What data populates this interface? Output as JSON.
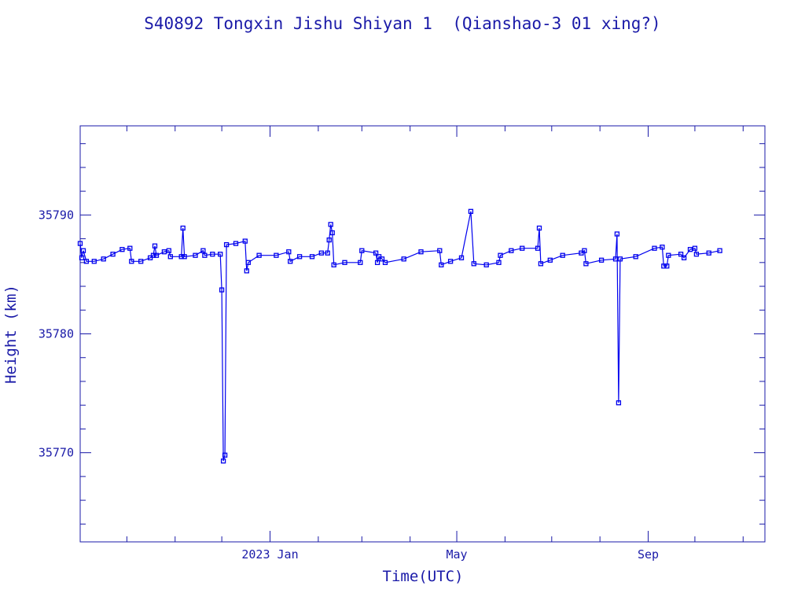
{
  "chart_data": {
    "type": "line",
    "title": "S40892 Tongxin Jishu Shiyan 1  (Qianshao-3 01 xing?)",
    "xlabel": "Time(UTC)",
    "ylabel": "Height (km)",
    "xlim": [
      "2022-09-01",
      "2023-11-15"
    ],
    "ylim": [
      35762.5,
      35797.5
    ],
    "x_ticks": [
      {
        "date": "2023-01-01",
        "label": "2023 Jan"
      },
      {
        "date": "2023-05-01",
        "label": "May"
      },
      {
        "date": "2023-09-01",
        "label": "Sep"
      }
    ],
    "y_ticks": [
      35770,
      35780,
      35790
    ],
    "grid": false,
    "color": "#0000ee",
    "series": [
      {
        "marker": "square",
        "points": [
          [
            "2022-09-01",
            35787.6
          ],
          [
            "2022-09-02",
            35786.4
          ],
          [
            "2022-09-03",
            35787.0
          ],
          [
            "2022-09-05",
            35786.1
          ],
          [
            "2022-09-10",
            35786.1
          ],
          [
            "2022-09-16",
            35786.3
          ],
          [
            "2022-09-22",
            35786.7
          ],
          [
            "2022-09-28",
            35787.1
          ],
          [
            "2022-10-03",
            35787.2
          ],
          [
            "2022-10-04",
            35786.1
          ],
          [
            "2022-10-10",
            35786.1
          ],
          [
            "2022-10-16",
            35786.4
          ],
          [
            "2022-10-18",
            35786.6
          ],
          [
            "2022-10-19",
            35787.4
          ],
          [
            "2022-10-20",
            35786.6
          ],
          [
            "2022-10-25",
            35786.9
          ],
          [
            "2022-10-28",
            35787.0
          ],
          [
            "2022-10-29",
            35786.5
          ],
          [
            "2022-11-05",
            35786.5
          ],
          [
            "2022-11-06",
            35788.9
          ],
          [
            "2022-11-07",
            35786.5
          ],
          [
            "2022-11-14",
            35786.6
          ],
          [
            "2022-11-19",
            35787.0
          ],
          [
            "2022-11-20",
            35786.6
          ],
          [
            "2022-11-25",
            35786.7
          ],
          [
            "2022-11-30",
            35786.7
          ],
          [
            "2022-12-01",
            35783.7
          ],
          [
            "2022-12-02",
            35769.3
          ],
          [
            "2022-12-03",
            35769.8
          ],
          [
            "2022-12-04",
            35787.5
          ],
          [
            "2022-12-10",
            35787.6
          ],
          [
            "2022-12-16",
            35787.8
          ],
          [
            "2022-12-17",
            35785.3
          ],
          [
            "2022-12-18",
            35786.0
          ],
          [
            "2022-12-25",
            35786.6
          ],
          [
            "2023-01-05",
            35786.6
          ],
          [
            "2023-01-13",
            35786.9
          ],
          [
            "2023-01-14",
            35786.1
          ],
          [
            "2023-01-20",
            35786.5
          ],
          [
            "2023-01-28",
            35786.5
          ],
          [
            "2023-02-03",
            35786.8
          ],
          [
            "2023-02-07",
            35786.8
          ],
          [
            "2023-02-08",
            35787.9
          ],
          [
            "2023-02-09",
            35789.2
          ],
          [
            "2023-02-10",
            35788.5
          ],
          [
            "2023-02-11",
            35785.8
          ],
          [
            "2023-02-18",
            35786.0
          ],
          [
            "2023-02-28",
            35786.0
          ],
          [
            "2023-03-01",
            35787.0
          ],
          [
            "2023-03-10",
            35786.8
          ],
          [
            "2023-03-11",
            35786.0
          ],
          [
            "2023-03-12",
            35786.5
          ],
          [
            "2023-03-14",
            35786.3
          ],
          [
            "2023-03-16",
            35786.0
          ],
          [
            "2023-03-28",
            35786.3
          ],
          [
            "2023-04-08",
            35786.9
          ],
          [
            "2023-04-20",
            35787.0
          ],
          [
            "2023-04-21",
            35785.8
          ],
          [
            "2023-04-27",
            35786.1
          ],
          [
            "2023-05-04",
            35786.4
          ],
          [
            "2023-05-10",
            35790.3
          ],
          [
            "2023-05-12",
            35785.9
          ],
          [
            "2023-05-20",
            35785.8
          ],
          [
            "2023-05-28",
            35786.0
          ],
          [
            "2023-05-29",
            35786.6
          ],
          [
            "2023-06-05",
            35787.0
          ],
          [
            "2023-06-12",
            35787.2
          ],
          [
            "2023-06-22",
            35787.2
          ],
          [
            "2023-06-23",
            35788.9
          ],
          [
            "2023-06-24",
            35785.9
          ],
          [
            "2023-06-30",
            35786.2
          ],
          [
            "2023-07-08",
            35786.6
          ],
          [
            "2023-07-20",
            35786.8
          ],
          [
            "2023-07-22",
            35787.0
          ],
          [
            "2023-07-23",
            35785.9
          ],
          [
            "2023-08-02",
            35786.2
          ],
          [
            "2023-08-11",
            35786.3
          ],
          [
            "2023-08-12",
            35788.4
          ],
          [
            "2023-08-13",
            35774.2
          ],
          [
            "2023-08-14",
            35786.3
          ],
          [
            "2023-08-24",
            35786.5
          ],
          [
            "2023-09-05",
            35787.2
          ],
          [
            "2023-09-10",
            35787.3
          ],
          [
            "2023-09-11",
            35785.7
          ],
          [
            "2023-09-13",
            35785.7
          ],
          [
            "2023-09-14",
            35786.6
          ],
          [
            "2023-09-22",
            35786.7
          ],
          [
            "2023-09-24",
            35786.4
          ],
          [
            "2023-09-28",
            35787.1
          ],
          [
            "2023-10-01",
            35787.2
          ],
          [
            "2023-10-02",
            35786.7
          ],
          [
            "2023-10-10",
            35786.8
          ],
          [
            "2023-10-17",
            35787.0
          ]
        ]
      }
    ]
  }
}
